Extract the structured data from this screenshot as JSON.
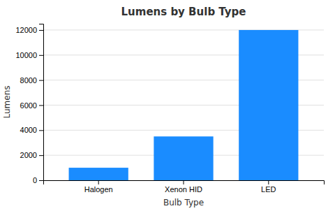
{
  "chart_data": {
    "type": "bar",
    "title": "Lumens by Bulb Type",
    "xlabel": "Bulb Type",
    "ylabel": "Lumens",
    "categories": [
      "Halogen",
      "Xenon HID",
      "LED"
    ],
    "values": [
      1000,
      3500,
      12000
    ],
    "color": "#1a8cff",
    "ylim": [
      0,
      12500
    ],
    "yticks": [
      0,
      2000,
      4000,
      6000,
      8000,
      10000,
      12000
    ],
    "grid": true
  }
}
